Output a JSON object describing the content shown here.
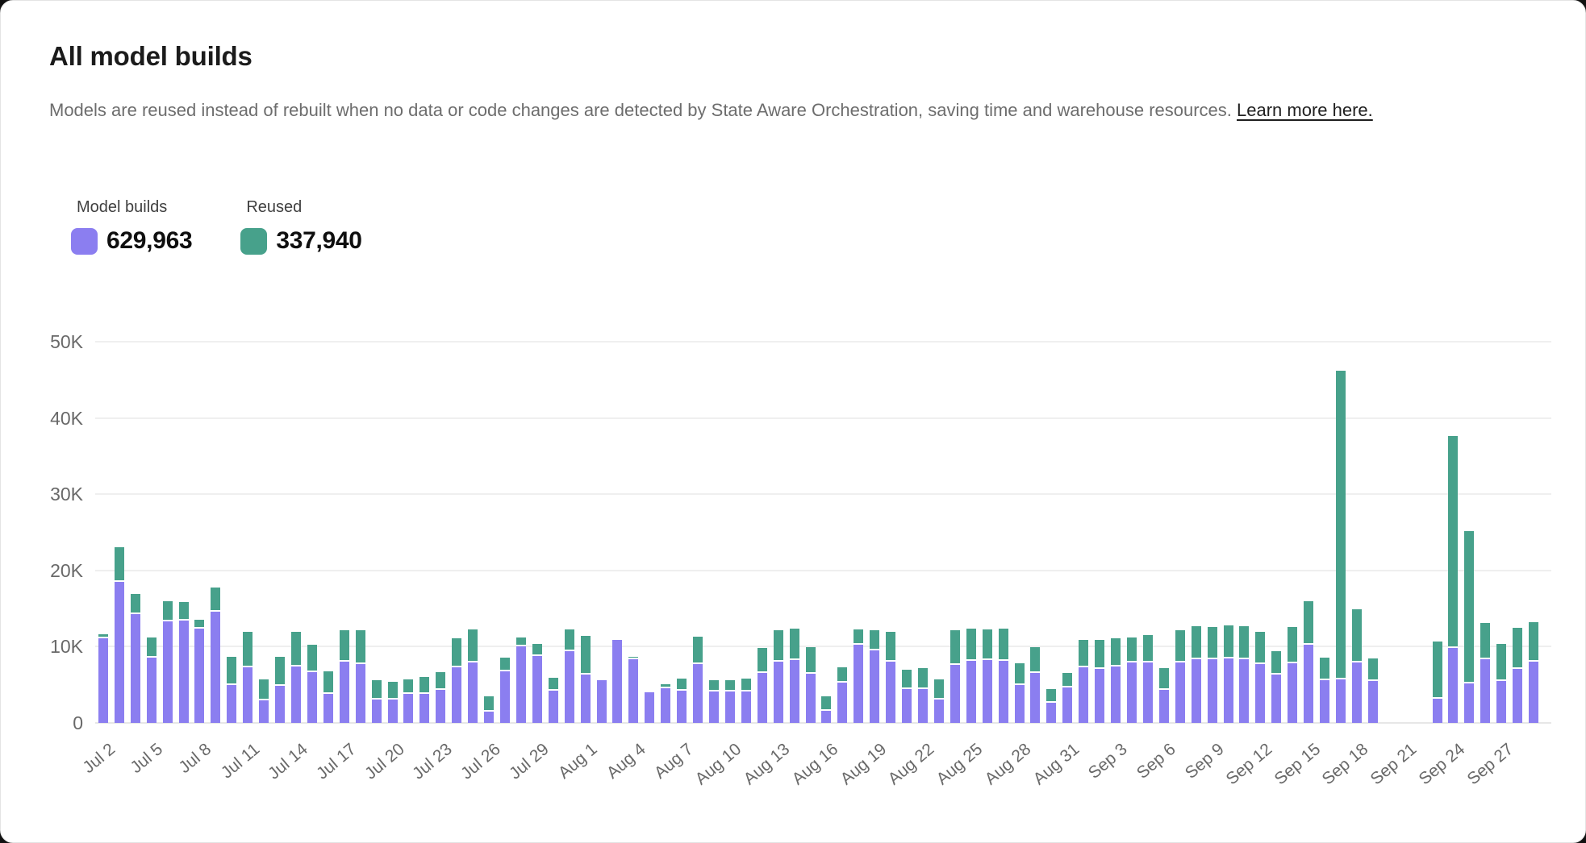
{
  "page": {
    "title": "All model builds",
    "subtitle_text": "Models are reused instead of rebuilt when no data or code changes are detected by State Aware Orchestration, saving time and warehouse resources. ",
    "subtitle_link_text": "Learn more here."
  },
  "legend": {
    "model_builds": {
      "label": "Model builds",
      "value": "629,963",
      "color": "#8b7ef0"
    },
    "reused": {
      "label": "Reused",
      "value": "337,940",
      "color": "#47a18b"
    }
  },
  "chart_data": {
    "type": "bar",
    "stacked": true,
    "grid": true,
    "legend_position": "top-left",
    "y_ticks": [
      "0",
      "10K",
      "20K",
      "30K",
      "40K",
      "50K"
    ],
    "ylim_thousands": [
      0,
      50
    ],
    "values_unit": "thousands of builds",
    "x_tick_every": 3,
    "missing_dates": [
      "Sep 20",
      "Sep 21",
      "Sep 22"
    ],
    "x": [
      "Jul 2",
      "Jul 3",
      "Jul 4",
      "Jul 5",
      "Jul 6",
      "Jul 7",
      "Jul 8",
      "Jul 9",
      "Jul 10",
      "Jul 11",
      "Jul 12",
      "Jul 13",
      "Jul 14",
      "Jul 15",
      "Jul 16",
      "Jul 17",
      "Jul 18",
      "Jul 19",
      "Jul 20",
      "Jul 21",
      "Jul 22",
      "Jul 23",
      "Jul 24",
      "Jul 25",
      "Jul 26",
      "Jul 27",
      "Jul 28",
      "Jul 29",
      "Jul 30",
      "Jul 31",
      "Aug 1",
      "Aug 2",
      "Aug 3",
      "Aug 4",
      "Aug 5",
      "Aug 6",
      "Aug 7",
      "Aug 8",
      "Aug 9",
      "Aug 10",
      "Aug 11",
      "Aug 12",
      "Aug 13",
      "Aug 14",
      "Aug 15",
      "Aug 16",
      "Aug 17",
      "Aug 18",
      "Aug 19",
      "Aug 20",
      "Aug 21",
      "Aug 22",
      "Aug 23",
      "Aug 24",
      "Aug 25",
      "Aug 26",
      "Aug 27",
      "Aug 28",
      "Aug 29",
      "Aug 30",
      "Aug 31",
      "Sep 1",
      "Sep 2",
      "Sep 3",
      "Sep 4",
      "Sep 5",
      "Sep 6",
      "Sep 7",
      "Sep 8",
      "Sep 9",
      "Sep 10",
      "Sep 11",
      "Sep 12",
      "Sep 13",
      "Sep 14",
      "Sep 15",
      "Sep 16",
      "Sep 17",
      "Sep 18",
      "Sep 19",
      "Sep 20",
      "Sep 21",
      "Sep 22",
      "Sep 23",
      "Sep 24",
      "Sep 25",
      "Sep 26",
      "Sep 27",
      "Sep 28",
      "Sep 29"
    ],
    "series": [
      {
        "name": "Model builds",
        "color": "#8b7ef0",
        "values": [
          11.1,
          18.5,
          14.3,
          8.6,
          13.3,
          13.4,
          12.4,
          14.6,
          5.0,
          7.3,
          3.0,
          4.9,
          7.4,
          6.7,
          3.8,
          8.0,
          7.7,
          3.1,
          3.1,
          3.8,
          3.8,
          4.3,
          7.3,
          7.9,
          1.5,
          6.8,
          10.0,
          8.8,
          4.2,
          9.4,
          6.3,
          5.6,
          10.9,
          8.4,
          4.0,
          4.5,
          4.2,
          7.7,
          4.1,
          4.1,
          4.1,
          6.6,
          8.0,
          8.2,
          6.4,
          1.6,
          5.3,
          10.3,
          9.5,
          8.0,
          4.4,
          4.4,
          3.1,
          7.6,
          8.1,
          8.2,
          8.1,
          5.0,
          6.6,
          2.6,
          4.6,
          7.3,
          7.1,
          7.4,
          7.9,
          7.9,
          4.3,
          7.9,
          8.3,
          8.4,
          8.5,
          8.4,
          7.7,
          6.3,
          7.8,
          10.3,
          5.6,
          5.7,
          7.9,
          5.5,
          0,
          0,
          0,
          3.2,
          9.8,
          5.2,
          8.4,
          5.5,
          7.1,
          8.0
        ]
      },
      {
        "name": "Reused",
        "color": "#47a18b",
        "values": [
          0.3,
          4.3,
          2.4,
          2.4,
          2.5,
          2.2,
          0.9,
          2.9,
          3.5,
          4.4,
          2.5,
          3.6,
          4.3,
          3.3,
          2.8,
          4.0,
          4.2,
          2.3,
          2.1,
          1.7,
          2.0,
          2.1,
          3.6,
          4.2,
          1.8,
          1.6,
          1.0,
          1.3,
          1.5,
          2.7,
          4.9,
          0,
          0,
          0.1,
          0,
          0.4,
          1.4,
          3.4,
          1.3,
          1.3,
          1.5,
          3.0,
          4.0,
          4.0,
          3.3,
          1.7,
          1.8,
          1.8,
          2.5,
          3.7,
          2.4,
          2.6,
          2.4,
          4.3,
          4.1,
          3.9,
          4.1,
          2.6,
          3.1,
          1.6,
          1.7,
          3.4,
          3.6,
          3.5,
          3.1,
          3.4,
          2.7,
          4.1,
          4.2,
          4.0,
          4.1,
          4.1,
          4.0,
          2.9,
          4.6,
          5.4,
          2.8,
          40.3,
          6.8,
          2.8,
          0,
          0,
          0,
          7.3,
          27.6,
          19.7,
          4.5,
          4.6,
          5.2,
          5.0
        ]
      }
    ]
  }
}
